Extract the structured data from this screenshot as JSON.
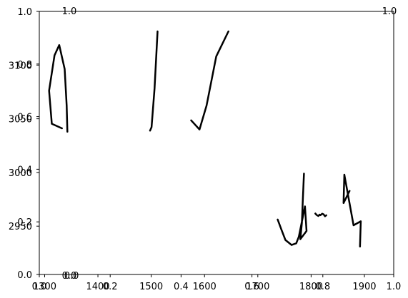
{
  "chart_data": {
    "type": "line",
    "title": "",
    "xlabel": "",
    "ylabel": "",
    "grid": false,
    "line_color": "#000000",
    "frame": {
      "xlim": [
        0,
        1
      ],
      "ylim": [
        0,
        1
      ],
      "xticks": [
        0.0,
        0.2,
        0.4,
        0.6,
        0.8,
        1.0
      ],
      "xtick_labels": [
        "0.0",
        "0.2",
        "0.4",
        "0.6",
        "0.8",
        "1.0"
      ],
      "yticks": [
        0.0,
        0.2,
        0.4,
        0.6,
        0.8,
        1.0
      ],
      "ytick_labels": [
        "0.0",
        "0.2",
        "0.4",
        "0.6",
        "0.8",
        "1.0"
      ]
    },
    "x_axes": [
      {
        "xlim": [
          1290,
          1955
        ],
        "ticks": [
          1300,
          1400,
          1500,
          1600,
          1700,
          1800,
          1900
        ],
        "tick_labels": [
          "1300",
          "1400",
          "1500",
          "1600",
          "1700",
          "1800",
          "1900"
        ]
      },
      {
        "xlim": [
          -0.1,
          1.0
        ],
        "ticks": [
          0.0,
          1.0
        ],
        "tick_labels": [
          "0.0",
          "1.0"
        ]
      }
    ],
    "y_axes": [
      {
        "ylim": [
          2905,
          3150
        ],
        "ticks": [
          2950,
          3000,
          3050,
          3100
        ],
        "tick_labels": [
          "2950",
          "3000",
          "3050",
          "3100"
        ]
      },
      {
        "ylim": [
          0.0,
          1.0
        ],
        "ticks": [
          0.0,
          1.0
        ],
        "tick_labels": [
          "0.0",
          "1.0"
        ]
      }
    ],
    "series": [
      {
        "points": [
          [
            0.26,
            0.95
          ],
          [
            0.11,
            0.91
          ],
          [
            0.07,
            0.62
          ],
          [
            0.15,
            0.31
          ],
          [
            0.22,
            0.22
          ],
          [
            0.3,
            0.43
          ],
          [
            0.33,
            0.75
          ],
          [
            0.34,
            0.98
          ]
        ]
      },
      {
        "points": [
          [
            0.6,
            0.97
          ],
          [
            0.63,
            0.94
          ],
          [
            0.69,
            0.6
          ],
          [
            0.75,
            0.1
          ]
        ]
      },
      {
        "points": [
          [
            0.25,
            0.88
          ],
          [
            0.38,
            0.96
          ],
          [
            0.49,
            0.75
          ],
          [
            0.64,
            0.32
          ],
          [
            0.83,
            0.1
          ]
        ]
      },
      {
        "points": [
          [
            0.37,
            0.66
          ],
          [
            0.44,
            0.78
          ],
          [
            0.52,
            0.91
          ],
          [
            0.64,
            0.97
          ],
          [
            0.73,
            0.95
          ],
          [
            0.78,
            0.87
          ],
          [
            0.9,
            0.5
          ],
          [
            0.93,
            0.8
          ],
          [
            0.81,
            0.9
          ],
          [
            0.84,
            0.7
          ],
          [
            0.86,
            0.4
          ],
          [
            0.88,
            0.1
          ]
        ]
      },
      {
        "points": [
          [
            0.31,
            0.78
          ],
          [
            0.37,
            0.86
          ],
          [
            0.45,
            0.92
          ],
          [
            0.51,
            0.84
          ],
          [
            0.55,
            0.87
          ],
          [
            0.63,
            0.79
          ],
          [
            0.7,
            0.83
          ],
          [
            0.76,
            0.93
          ],
          [
            0.82,
            0.88
          ]
        ]
      },
      {
        "points": [
          [
            0.2,
            0.28
          ],
          [
            0.05,
            0.4
          ],
          [
            0.07,
            0.12
          ],
          [
            0.3,
            0.62
          ],
          [
            0.48,
            0.58
          ],
          [
            0.46,
            0.83
          ]
        ]
      }
    ]
  }
}
